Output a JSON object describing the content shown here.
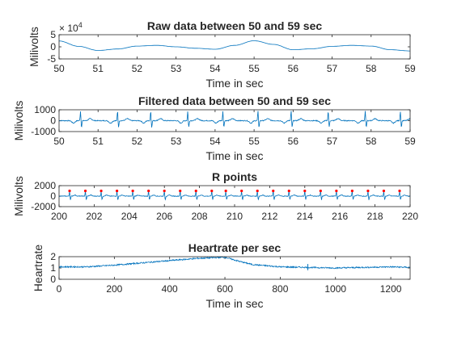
{
  "chart_data": [
    {
      "type": "line",
      "title": "Raw data between 50 and 59 sec",
      "xlabel": "Time in sec",
      "ylabel": "Milivolts",
      "xlim": [
        50,
        59
      ],
      "ylim": [
        -5,
        5
      ],
      "y_exponent": {
        "base": "× 10",
        "power": "4"
      },
      "xticks": [
        50,
        51,
        52,
        53,
        54,
        55,
        56,
        57,
        58,
        59
      ],
      "yticks": [
        -5,
        0,
        5
      ],
      "line_color": "#0072BD",
      "signal": "slow baseline oscillation with period about 3 s",
      "series": [
        {
          "x": [
            50,
            50.5,
            51,
            51.5,
            52,
            52.5,
            53,
            53.5,
            54,
            54.5,
            55,
            55.5,
            56,
            56.5,
            57,
            57.5,
            58,
            58.5,
            59
          ],
          "values": [
            2.4,
            0.2,
            -1.5,
            -0.9,
            0.3,
            0.6,
            0.0,
            -0.6,
            -1.0,
            0.6,
            2.5,
            1.0,
            -1.2,
            -0.8,
            0.2,
            0.6,
            0.3,
            -1.2,
            -1.7
          ]
        }
      ]
    },
    {
      "type": "line",
      "title": "Filtered data between 50 and 59 sec",
      "xlabel": "Time in sec",
      "ylabel": "Milivolts",
      "xlim": [
        50,
        59
      ],
      "ylim": [
        -1000,
        1000
      ],
      "xticks": [
        50,
        51,
        52,
        53,
        54,
        55,
        56,
        57,
        58,
        59
      ],
      "yticks": [
        -1000,
        0,
        1000
      ],
      "line_color": "#0072BD",
      "beats_x": [
        50.55,
        51.5,
        52.35,
        53.3,
        54.2,
        55.1,
        55.95,
        56.9,
        57.85,
        58.75
      ],
      "beat_peak": 900,
      "beat_trough": -600
    },
    {
      "type": "line",
      "title": "R points",
      "xlabel": "",
      "ylabel": "Milivolts",
      "xlim": [
        200,
        220
      ],
      "ylim": [
        -2000,
        2000
      ],
      "xticks": [
        200,
        202,
        204,
        206,
        208,
        210,
        212,
        214,
        216,
        218,
        220
      ],
      "yticks": [
        -2000,
        0,
        2000
      ],
      "line_color": "#0072BD",
      "marker_color": "#FF0000",
      "beats_x": [
        200.6,
        201.5,
        202.4,
        203.3,
        204.2,
        205.1,
        206.0,
        206.9,
        207.8,
        208.7,
        209.5,
        210.4,
        211.3,
        212.2,
        213.1,
        214.0,
        214.9,
        215.8,
        216.7,
        217.6,
        218.5,
        219.4
      ],
      "r_peak_value": 1000
    },
    {
      "type": "line",
      "title": "Heartrate per sec",
      "xlabel": "Time in sec",
      "ylabel": "Heartrate",
      "xlim": [
        0,
        1270
      ],
      "ylim": [
        0,
        2
      ],
      "xticks": [
        0,
        200,
        400,
        600,
        800,
        1000,
        1200
      ],
      "yticks": [
        0,
        1,
        2
      ],
      "line_color": "#0072BD",
      "series": [
        {
          "x": [
            0,
            100,
            200,
            300,
            400,
            500,
            600,
            650,
            700,
            800,
            900,
            1000,
            1100,
            1200,
            1270
          ],
          "values": [
            1.1,
            1.1,
            1.25,
            1.45,
            1.65,
            1.85,
            1.95,
            1.6,
            1.3,
            1.1,
            1.05,
            1.0,
            1.05,
            1.1,
            1.05
          ]
        }
      ],
      "spike": {
        "x": 900,
        "low": 0.8,
        "high": 1.35
      }
    }
  ]
}
